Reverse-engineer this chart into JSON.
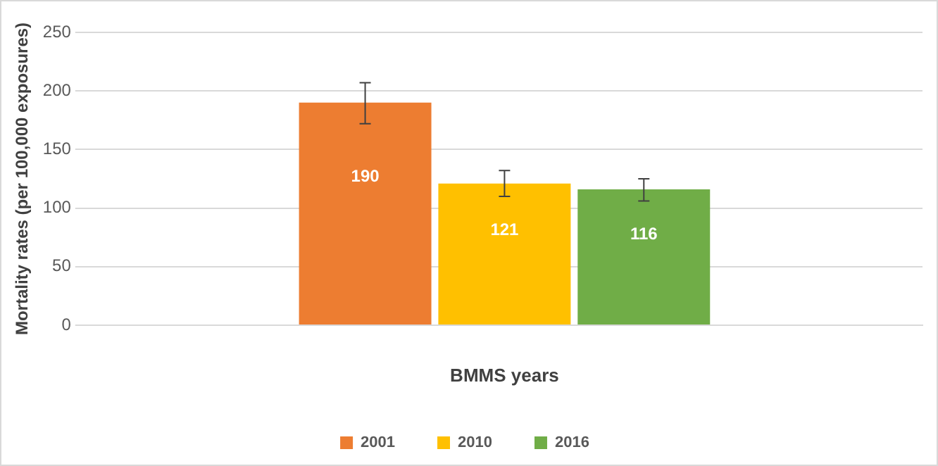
{
  "chart_data": {
    "type": "bar",
    "xlabel": "BMMS years",
    "ylabel": "Mortality rates (per 100,000 exposures)",
    "categories": [
      null
    ],
    "series": [
      {
        "name": "2001",
        "color": "#ed7d31",
        "values": [
          190
        ],
        "errors": [
          [
            172,
            207
          ]
        ]
      },
      {
        "name": "2010",
        "color": "#ffc000",
        "values": [
          121
        ],
        "errors": [
          [
            110,
            132
          ]
        ]
      },
      {
        "name": "2016",
        "color": "#70ad47",
        "values": [
          116
        ],
        "errors": [
          [
            106,
            125
          ]
        ]
      }
    ],
    "ylim": [
      0,
      250
    ],
    "yticks": [
      0,
      50,
      100,
      150,
      200,
      250
    ],
    "grid": "y",
    "legend": "bottom",
    "data_labels": true
  }
}
